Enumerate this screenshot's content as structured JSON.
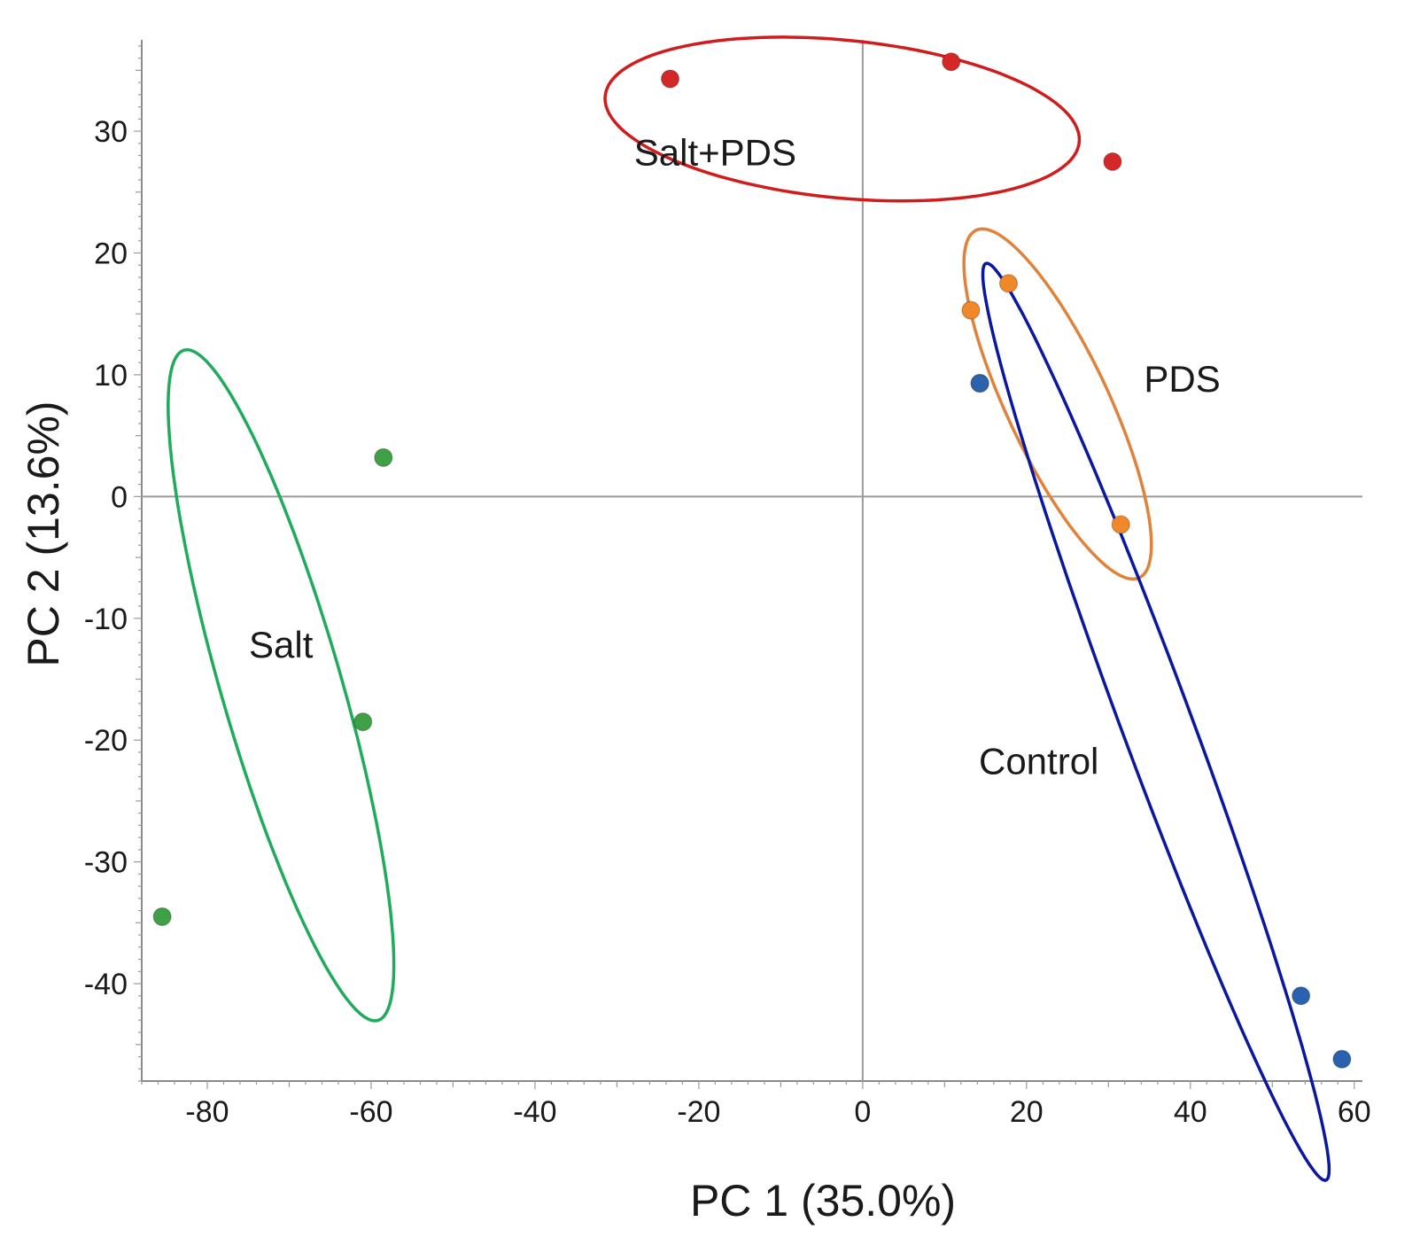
{
  "chart_data": {
    "type": "scatter",
    "title": "",
    "xlabel": "PC 1 (35.0%)",
    "ylabel": "PC 2 (13.6%)",
    "xlim": [
      -88,
      61
    ],
    "ylim": [
      -48,
      37.5
    ],
    "xticks": [
      -80,
      -60,
      -40,
      -20,
      0,
      20,
      40,
      60
    ],
    "yticks": [
      -40,
      -30,
      -20,
      -10,
      0,
      10,
      20,
      30
    ],
    "zero_lines": true,
    "grid": false,
    "legend": "none",
    "series": [
      {
        "name": "Salt+PDS",
        "color": "#d62728",
        "points": [
          [
            -23.5,
            34.3
          ],
          [
            10.8,
            35.7
          ],
          [
            30.5,
            27.5
          ]
        ],
        "ellipse": {
          "center": [
            -2.5,
            31
          ],
          "radii": [
            29,
            6.5
          ],
          "angle_deg": -3.5
        }
      },
      {
        "name": "PDS",
        "color": "#f0882a",
        "points": [
          [
            13.2,
            15.3
          ],
          [
            17.8,
            17.5
          ],
          [
            31.5,
            -2.3
          ],
          [
            14.3,
            9.3
          ]
        ],
        "ellipse": {
          "center": [
            23.8,
            7.6
          ],
          "radii": [
            17.5,
            5.6
          ],
          "angle_deg": -53
        }
      },
      {
        "name": "Control",
        "color": "#2a62ae",
        "points": [
          [
            14.3,
            9.3
          ],
          [
            53.5,
            -41.0
          ],
          [
            58.5,
            -46.2
          ]
        ],
        "ellipse": {
          "center": [
            35.8,
            -18.5
          ],
          "radii": [
            43,
            4
          ],
          "angle_deg": -61
        }
      },
      {
        "name": "Salt",
        "color": "#3fa046",
        "points": [
          [
            -58.5,
            3.2
          ],
          [
            -61,
            -18.5
          ],
          [
            -85.5,
            -34.5
          ]
        ],
        "ellipse": {
          "center": [
            -71,
            -15.5
          ],
          "radii": [
            30,
            7
          ],
          "angle_deg": -66
        }
      }
    ],
    "annotations": [
      {
        "text": "Salt+PDS",
        "x": -18,
        "y": 27.2,
        "color": "#1a1a1a"
      },
      {
        "text": "PDS",
        "x": 39,
        "y": 8.6,
        "color": "#1a1a1a"
      },
      {
        "text": "Control",
        "x": 21.5,
        "y": -22.8,
        "color": "#1a1a1a"
      },
      {
        "text": "Salt",
        "x": -71,
        "y": -13.2,
        "color": "#1a1a1a"
      }
    ]
  }
}
